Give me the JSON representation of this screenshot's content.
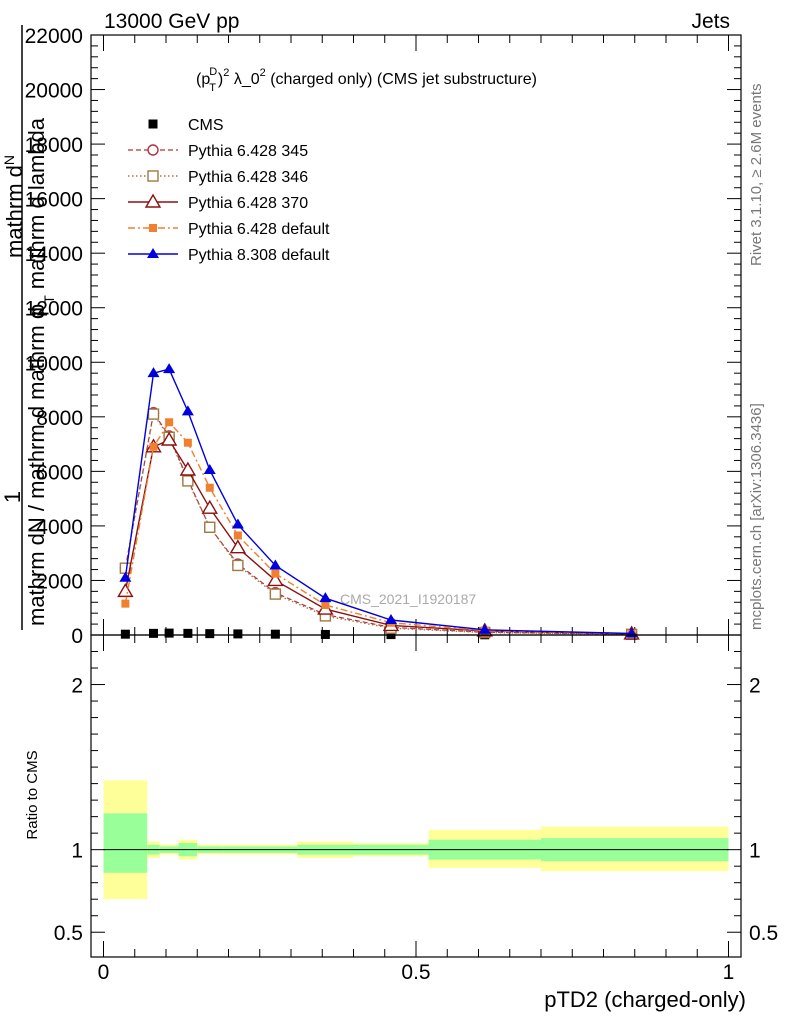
{
  "header": {
    "left": "13000 GeV pp",
    "right": "Jets"
  },
  "side_labels": {
    "rivet": "Rivet 3.1.10, ≥ 2.6M events",
    "mcplots": "mcplots.cern.ch [arXiv:1306.3436]"
  },
  "watermark": "CMS_2021_I1920187",
  "colors": {
    "cms": "#000000",
    "py345": "#b03040",
    "py346": "#a07840",
    "py370": "#8b1010",
    "py6def": "#f08030",
    "py8def": "#0000dd",
    "band_inner": "#99ff99",
    "band_outer": "#ffff99"
  },
  "chart_data": [
    {
      "type": "line",
      "title_parts": {
        "p": "(p",
        "sup": "D",
        "sub": "T",
        "close": ")",
        "pow": "2",
        "mid": " λ_0",
        "pow2": "2",
        "rest": " (charged only) (CMS jet substructure)"
      },
      "ylabel_lines": [
        "1",
        "mathrm d²N / mathrm d mathrm d p_T mathrm d mathrm d lambda",
        "mathrm dN"
      ],
      "ylabel_parts": {
        "a": "mathrm d",
        "b": "N",
        "c": "1",
        "d": "mathrm d",
        "e": "N / mathrm d",
        "f": " mathrm d",
        "g": "p",
        "h": "T",
        "i": "mathrm d lambda"
      },
      "ylim": [
        0,
        22000
      ],
      "yticks": [
        0,
        2000,
        4000,
        6000,
        8000,
        10000,
        12000,
        14000,
        16000,
        18000,
        20000,
        22000
      ],
      "ytick_labels": [
        "0",
        "2000",
        "4000",
        "6000",
        "8000",
        "10000",
        "12000",
        "14000",
        "16000",
        "18000",
        "20000",
        "22000"
      ],
      "xlim": [
        -0.02,
        1.02
      ],
      "legend": {
        "placement": "top-left",
        "entries": [
          "CMS",
          "Pythia 6.428 345",
          "Pythia 6.428 346",
          "Pythia 6.428 370",
          "Pythia 6.428 default",
          "Pythia 8.308 default"
        ]
      },
      "x": [
        0.035,
        0.08,
        0.105,
        0.135,
        0.17,
        0.215,
        0.275,
        0.355,
        0.46,
        0.61,
        0.845
      ],
      "series": [
        {
          "name": "CMS",
          "key": "cms",
          "marker": "square",
          "values": [
            30,
            60,
            70,
            60,
            50,
            40,
            30,
            20,
            15,
            8,
            3
          ]
        },
        {
          "name": "Pythia 6.428 345",
          "key": "py345",
          "marker": "open-circle",
          "values": [
            2450,
            8150,
            7300,
            5700,
            3950,
            2600,
            1550,
            750,
            280,
            100,
            30
          ]
        },
        {
          "name": "Pythia 6.428 346",
          "key": "py346",
          "marker": "open-square",
          "values": [
            2450,
            8100,
            7250,
            5650,
            3950,
            2550,
            1500,
            700,
            250,
            90,
            25
          ]
        },
        {
          "name": "Pythia 6.428 370",
          "key": "py370",
          "marker": "open-triangle",
          "values": [
            1600,
            6900,
            7150,
            6050,
            4650,
            3200,
            2000,
            950,
            350,
            150,
            40
          ]
        },
        {
          "name": "Pythia 6.428 default",
          "key": "py6def",
          "marker": "small-square",
          "values": [
            1150,
            6900,
            7800,
            7050,
            5400,
            3650,
            2250,
            1100,
            450,
            160,
            40
          ]
        },
        {
          "name": "Pythia 8.308 default",
          "key": "py8def",
          "marker": "filled-triangle",
          "values": [
            2100,
            9600,
            9750,
            8200,
            6050,
            4050,
            2550,
            1350,
            550,
            190,
            55
          ]
        }
      ]
    },
    {
      "type": "area",
      "ylabel": "Ratio to CMS",
      "xlabel": "pTD2 (charged-only)",
      "ylim": [
        0.35,
        2.3
      ],
      "yticks": [
        0.5,
        1,
        2
      ],
      "ytick_labels": [
        "0.5",
        "1",
        "2"
      ],
      "xticks": [
        0,
        0.5,
        1
      ],
      "xtick_labels": [
        "0",
        "0.5",
        "1"
      ],
      "bins": [
        {
          "lo": 0.0,
          "hi": 0.07,
          "inner": [
            0.86,
            1.22
          ],
          "outer": [
            0.7,
            1.42
          ]
        },
        {
          "lo": 0.07,
          "hi": 0.09,
          "inner": [
            0.97,
            1.03
          ],
          "outer": [
            0.95,
            1.05
          ]
        },
        {
          "lo": 0.09,
          "hi": 0.12,
          "inner": [
            0.98,
            1.02
          ],
          "outer": [
            0.97,
            1.03
          ]
        },
        {
          "lo": 0.12,
          "hi": 0.15,
          "inner": [
            0.96,
            1.04
          ],
          "outer": [
            0.94,
            1.06
          ]
        },
        {
          "lo": 0.15,
          "hi": 0.19,
          "inner": [
            0.98,
            1.02
          ],
          "outer": [
            0.97,
            1.03
          ]
        },
        {
          "lo": 0.19,
          "hi": 0.24,
          "inner": [
            0.98,
            1.02
          ],
          "outer": [
            0.97,
            1.03
          ]
        },
        {
          "lo": 0.24,
          "hi": 0.31,
          "inner": [
            0.98,
            1.02
          ],
          "outer": [
            0.97,
            1.03
          ]
        },
        {
          "lo": 0.31,
          "hi": 0.4,
          "inner": [
            0.97,
            1.03
          ],
          "outer": [
            0.95,
            1.05
          ]
        },
        {
          "lo": 0.4,
          "hi": 0.52,
          "inner": [
            0.97,
            1.03
          ],
          "outer": [
            0.96,
            1.04
          ]
        },
        {
          "lo": 0.52,
          "hi": 0.7,
          "inner": [
            0.94,
            1.06
          ],
          "outer": [
            0.89,
            1.12
          ]
        },
        {
          "lo": 0.7,
          "hi": 1.0,
          "inner": [
            0.93,
            1.07
          ],
          "outer": [
            0.87,
            1.14
          ]
        }
      ]
    }
  ]
}
